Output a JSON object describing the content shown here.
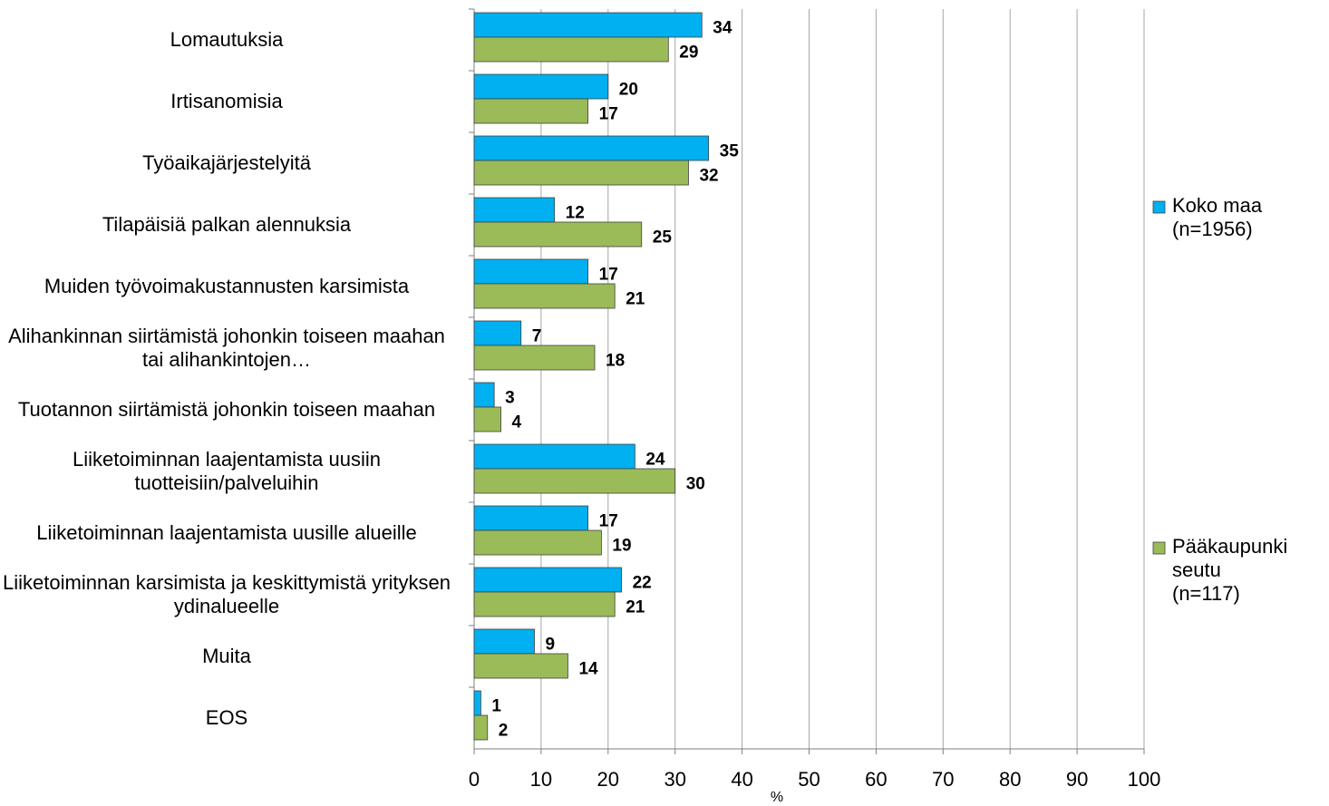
{
  "chart_data": {
    "type": "bar",
    "orientation": "horizontal",
    "categories": [
      "Lomautuksia",
      "Irtisanomisia",
      "Työaikajärjestelyitä",
      "Tilapäisiä palkan alennuksia",
      "Muiden työvoimakustannusten karsimista",
      "Alihankinnan siirtämistä johonkin toiseen maahan tai alihankintojen…",
      "Tuotannon siirtämistä johonkin toiseen maahan",
      "Liiketoiminnan laajentamista uusiin tuotteisiin/palveluihin",
      "Liiketoiminnan laajentamista uusille alueille",
      "Liiketoiminnan karsimista ja keskittymistä yrityksen ydinalueelle",
      "Muita",
      "EOS"
    ],
    "series": [
      {
        "name": "Koko maa (n=1956)",
        "color": "#00b0f0",
        "values": [
          34,
          20,
          35,
          12,
          17,
          7,
          3,
          24,
          17,
          22,
          9,
          1
        ]
      },
      {
        "name": "Pääkaupunki seutu (n=117)",
        "color": "#9bbb59",
        "values": [
          29,
          17,
          32,
          25,
          21,
          18,
          4,
          30,
          19,
          21,
          14,
          2
        ]
      }
    ],
    "xlabel": "%",
    "xlim": [
      0,
      100
    ],
    "xticks": [
      0,
      10,
      20,
      30,
      40,
      50,
      60,
      70,
      80,
      90,
      100
    ],
    "grid": true,
    "legend": "right"
  }
}
